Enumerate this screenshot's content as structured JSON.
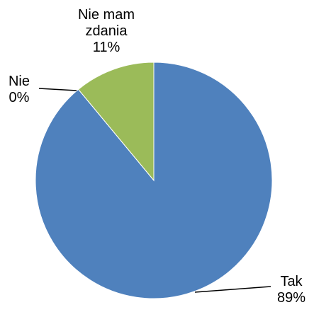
{
  "chart_data": {
    "type": "pie",
    "categories": [
      "Tak",
      "Nie",
      "Nie mam zdania"
    ],
    "values": [
      89,
      0,
      11
    ],
    "value_labels": [
      "89%",
      "0%",
      "11%"
    ],
    "colors": [
      "#4f81bd",
      "#c0504d",
      "#9bbb59"
    ]
  }
}
